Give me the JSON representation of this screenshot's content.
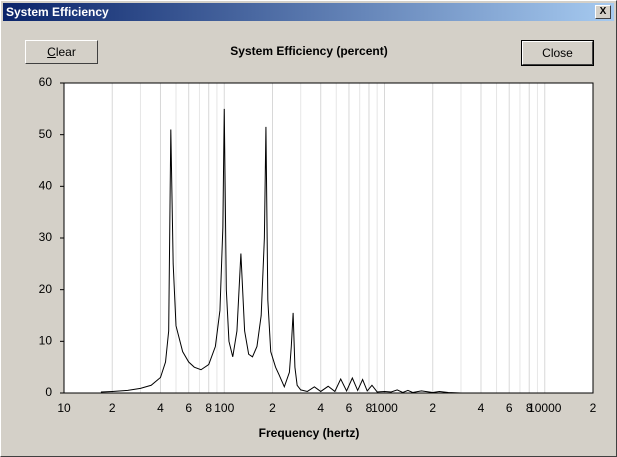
{
  "window": {
    "title": "System Efficiency",
    "close_glyph": "X"
  },
  "buttons": {
    "clear": "Clear",
    "close": "Close"
  },
  "chart_data": {
    "type": "line",
    "title": "System Efficiency (percent)",
    "x_label": "Frequency (hertz)",
    "x_log": true,
    "minor_grid": true,
    "color": "#000000",
    "xlim": [
      10,
      20000
    ],
    "ylim": [
      0,
      60
    ],
    "yticks": [
      0,
      10,
      20,
      30,
      40,
      50,
      60
    ],
    "xticks": [
      10,
      {
        "value": 20,
        "label": "2"
      },
      {
        "value": 40,
        "label": "4"
      },
      {
        "value": 60,
        "label": "6"
      },
      {
        "value": 80,
        "label": "8"
      },
      100,
      {
        "value": 200,
        "label": "2"
      },
      {
        "value": 400,
        "label": "4"
      },
      {
        "value": 600,
        "label": "6"
      },
      {
        "value": 800,
        "label": "8"
      },
      1000,
      {
        "value": 2000,
        "label": "2"
      },
      {
        "value": 4000,
        "label": "4"
      },
      {
        "value": 6000,
        "label": "6"
      },
      {
        "value": 8000,
        "label": "8"
      },
      10000,
      {
        "value": 20000,
        "label": "2"
      }
    ],
    "x": [
      17,
      20,
      25,
      30,
      35,
      40,
      43,
      45,
      46.4,
      48,
      50,
      55,
      60,
      65,
      71.6,
      80,
      88,
      94,
      98,
      100,
      103,
      107,
      113,
      120,
      127,
      134,
      142,
      150,
      160,
      170,
      178,
      182,
      187,
      195,
      209,
      220,
      237,
      255,
      262,
      269,
      276,
      285,
      300,
      330,
      365,
      400,
      445,
      490,
      533,
      580,
      630,
      680,
      730,
      780,
      835,
      900,
      1000,
      1100,
      1200,
      1300,
      1400,
      1500,
      1700,
      2000,
      2200,
      2500,
      3000
    ],
    "values": [
      0.2,
      0.3,
      0.5,
      0.9,
      1.5,
      3,
      6,
      12,
      51,
      25,
      13,
      8,
      6,
      5,
      4.5,
      5.5,
      9,
      16,
      32,
      55,
      20,
      10,
      7,
      12,
      27,
      12,
      7.5,
      7,
      9,
      15,
      30,
      51.5,
      18,
      8,
      5,
      3.5,
      1.2,
      4,
      9,
      15.5,
      5,
      1.5,
      0.6,
      0.3,
      1.2,
      0.3,
      1.3,
      0.3,
      2.7,
      0.4,
      2.9,
      0.5,
      2.6,
      0.4,
      1.5,
      0.2,
      0.3,
      0.2,
      0.6,
      0.1,
      0.5,
      0.1,
      0.4,
      0.1,
      0.3,
      0.1,
      0
    ]
  }
}
